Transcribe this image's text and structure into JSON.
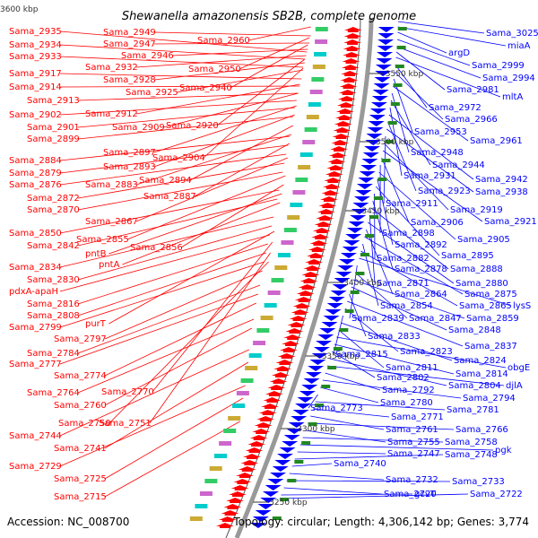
{
  "title": "Shewanella amazonensis SB2B, complete genome",
  "footer": {
    "accession": "Accession: NC_008700",
    "summary": "Topology: circular; Length: 4,306,142 bp; Genes: 3,774"
  },
  "colors": {
    "forward": "#ff0000",
    "reverse": "#0000ff",
    "backbone": "#999999"
  },
  "ticks": [
    {
      "label": "3600 kbp",
      "y": 10
    },
    {
      "label": "3550 kbp",
      "y": 82
    },
    {
      "label": "3500 kbp",
      "y": 158
    },
    {
      "label": "3450 kbp",
      "y": 235
    },
    {
      "label": "3400 kbp",
      "y": 315
    },
    {
      "label": "3350 kbp",
      "y": 397
    },
    {
      "label": "3300 kbp",
      "y": 478
    },
    {
      "label": "3250 kbp",
      "y": 560
    }
  ],
  "left_labels": [
    [
      "Sama_2935",
      10,
      38,
      325,
      58
    ],
    [
      "Sama_2934",
      10,
      53,
      322,
      66
    ],
    [
      "Sama_2933",
      10,
      66,
      320,
      75
    ],
    [
      "Sama_2917",
      10,
      85,
      318,
      88
    ],
    [
      "Sama_2914",
      10,
      100,
      316,
      96
    ],
    [
      "Sama_2913",
      30,
      115,
      314,
      104
    ],
    [
      "Sama_2902",
      10,
      131,
      312,
      112
    ],
    [
      "Sama_2901",
      30,
      145,
      310,
      120
    ],
    [
      "Sama_2899",
      30,
      158,
      308,
      130
    ],
    [
      "Sama_2884",
      10,
      182,
      304,
      152
    ],
    [
      "Sama_2879",
      10,
      196,
      302,
      162
    ],
    [
      "Sama_2876",
      10,
      209,
      300,
      172
    ],
    [
      "Sama_2872",
      30,
      224,
      298,
      182
    ],
    [
      "Sama_2870",
      30,
      237,
      296,
      192
    ],
    [
      "Sama_2850",
      10,
      263,
      292,
      212
    ],
    [
      "Sama_2842",
      30,
      277,
      290,
      222
    ],
    [
      "Sama_2834",
      10,
      301,
      286,
      242
    ],
    [
      "Sama_2830",
      30,
      315,
      284,
      252
    ],
    [
      "pdxA-apaH",
      10,
      328,
      282,
      262
    ],
    [
      "Sama_2816",
      30,
      342,
      280,
      272
    ],
    [
      "Sama_2808",
      30,
      355,
      278,
      282
    ],
    [
      "Sama_2799",
      10,
      368,
      276,
      292
    ],
    [
      "Sama_2797",
      60,
      381,
      274,
      302
    ],
    [
      "Sama_2784",
      30,
      397,
      272,
      318
    ],
    [
      "Sama_2777",
      10,
      409,
      270,
      328
    ],
    [
      "Sama_2774",
      60,
      422,
      268,
      338
    ],
    [
      "Sama_2764",
      30,
      441,
      266,
      356
    ],
    [
      "Sama_2760",
      60,
      455,
      264,
      366
    ],
    [
      "Sama_2744",
      10,
      489,
      262,
      390
    ],
    [
      "Sama_2741",
      60,
      503,
      262,
      404
    ],
    [
      "Sama_2729",
      10,
      523,
      260,
      430
    ],
    [
      "Sama_2725",
      60,
      537,
      258,
      444
    ],
    [
      "Sama_2715",
      60,
      557,
      256,
      470
    ],
    [
      "Sama_2949",
      115,
      39,
      330,
      40
    ],
    [
      "Sama_2947",
      115,
      52,
      328,
      48
    ],
    [
      "Sama_2946",
      135,
      65,
      326,
      55
    ],
    [
      "Sama_2932",
      95,
      78,
      324,
      62
    ],
    [
      "Sama_2928",
      115,
      92,
      322,
      70
    ],
    [
      "Sama_2925",
      140,
      106,
      320,
      78
    ],
    [
      "Sama_2912",
      95,
      130,
      316,
      94
    ],
    [
      "Sama_2909",
      125,
      145,
      314,
      104
    ],
    [
      "Sama_2897",
      115,
      173,
      312,
      118
    ],
    [
      "Sama_2893",
      115,
      189,
      310,
      128
    ],
    [
      "Sama_2894",
      155,
      204,
      308,
      140
    ],
    [
      "Sama_2883",
      95,
      209,
      306,
      150
    ],
    [
      "Sama_2887",
      160,
      222,
      304,
      160
    ],
    [
      "Sama_2867",
      95,
      250,
      302,
      176
    ],
    [
      "Sama_2855",
      85,
      270,
      300,
      196
    ],
    [
      "Sama_2856",
      145,
      279,
      298,
      206
    ],
    [
      "pntB",
      95,
      286,
      296,
      216
    ],
    [
      "pntA",
      110,
      298,
      294,
      226
    ],
    [
      "purT",
      95,
      364,
      288,
      258
    ],
    [
      "Sama_2770",
      113,
      440,
      286,
      270
    ],
    [
      "Sama_2751",
      110,
      475,
      284,
      282
    ],
    [
      "Sama_2750",
      65,
      475,
      282,
      292
    ],
    [
      "Sama_2960",
      220,
      48,
      330,
      30
    ],
    [
      "Sama_2950",
      210,
      80,
      328,
      42
    ],
    [
      "Sama_2940",
      200,
      101,
      326,
      50
    ],
    [
      "Sama_2920",
      185,
      143,
      322,
      66
    ],
    [
      "Sama_2904",
      170,
      179,
      320,
      76
    ]
  ],
  "right_labels": [
    [
      "Sama_3025",
      542,
      40,
      380,
      24
    ],
    [
      "miaA",
      566,
      54,
      380,
      30
    ],
    [
      "argD",
      500,
      62,
      380,
      36
    ],
    [
      "Sama_2999",
      526,
      76,
      380,
      44
    ],
    [
      "Sama_2994",
      538,
      90,
      380,
      52
    ],
    [
      "Sama_2981",
      498,
      103,
      380,
      58
    ],
    [
      "mltA",
      560,
      111,
      380,
      64
    ],
    [
      "Sama_2972",
      478,
      123,
      380,
      72
    ],
    [
      "Sama_2966",
      496,
      136,
      380,
      80
    ],
    [
      "Sama_2953",
      462,
      150,
      380,
      88
    ],
    [
      "Sama_2961",
      524,
      160,
      380,
      96
    ],
    [
      "Sama_2948",
      458,
      173,
      380,
      104
    ],
    [
      "Sama_2944",
      482,
      187,
      380,
      112
    ],
    [
      "Sama_2931",
      450,
      199,
      380,
      120
    ],
    [
      "Sama_2942",
      530,
      203,
      380,
      128
    ],
    [
      "Sama_2923",
      466,
      216,
      380,
      136
    ],
    [
      "Sama_2938",
      530,
      217,
      380,
      144
    ],
    [
      "Sama_2911",
      430,
      230,
      380,
      152
    ],
    [
      "Sama_2919",
      502,
      237,
      380,
      160
    ],
    [
      "Sama_2921",
      540,
      250,
      380,
      168
    ],
    [
      "Sama_2906",
      458,
      251,
      380,
      176
    ],
    [
      "Sama_2898",
      426,
      263,
      380,
      184
    ],
    [
      "Sama_2905",
      510,
      270,
      380,
      192
    ],
    [
      "Sama_2892",
      440,
      276,
      380,
      200
    ],
    [
      "Sama_2895",
      492,
      288,
      380,
      208
    ],
    [
      "Sama_2882",
      420,
      291,
      380,
      216
    ],
    [
      "Sama_2878",
      440,
      303,
      380,
      224
    ],
    [
      "Sama_2888",
      502,
      303,
      380,
      232
    ],
    [
      "Sama_2871",
      420,
      319,
      380,
      240
    ],
    [
      "Sama_2880",
      508,
      319,
      380,
      248
    ],
    [
      "Sama_2864",
      440,
      331,
      380,
      256
    ],
    [
      "Sama_2875",
      518,
      331,
      380,
      264
    ],
    [
      "Sama_2854",
      424,
      344,
      380,
      272
    ],
    [
      "Sama_2865",
      512,
      344,
      380,
      280
    ],
    [
      "lysS",
      572,
      344,
      380,
      288
    ],
    [
      "Sama_2839",
      392,
      358,
      380,
      296
    ],
    [
      "Sama_2847",
      456,
      358,
      380,
      304
    ],
    [
      "Sama_2859",
      520,
      358,
      380,
      312
    ],
    [
      "Sama_2848",
      500,
      371,
      380,
      320
    ],
    [
      "Sama_2833",
      410,
      378,
      380,
      328
    ],
    [
      "Sama_2837",
      518,
      389,
      380,
      336
    ],
    [
      "Sama_2823",
      446,
      395,
      380,
      344
    ],
    [
      "Sama_2815",
      374,
      398,
      380,
      352
    ],
    [
      "Sama_2824",
      506,
      405,
      380,
      360
    ],
    [
      "Sama_2811",
      430,
      413,
      380,
      368
    ],
    [
      "obgE",
      566,
      413,
      380,
      376
    ],
    [
      "Sama_2814",
      508,
      420,
      380,
      384
    ],
    [
      "Sama_2802",
      420,
      424,
      380,
      392
    ],
    [
      "Sama_2804",
      500,
      433,
      380,
      400
    ],
    [
      "djlA",
      564,
      433,
      380,
      408
    ],
    [
      "Sama_2792",
      426,
      438,
      380,
      416
    ],
    [
      "Sama_2794",
      516,
      447,
      380,
      424
    ],
    [
      "Sama_2780",
      424,
      452,
      380,
      432
    ],
    [
      "Sama_2773",
      346,
      458,
      380,
      440
    ],
    [
      "Sama_2781",
      498,
      460,
      380,
      448
    ],
    [
      "Sama_2771",
      436,
      468,
      380,
      456
    ],
    [
      "Sama_2761",
      430,
      482,
      380,
      464
    ],
    [
      "Sama_2766",
      508,
      482,
      380,
      472
    ],
    [
      "Sama_2755",
      432,
      496,
      380,
      480
    ],
    [
      "Sama_2758",
      496,
      496,
      380,
      488
    ],
    [
      "pgk",
      552,
      505,
      380,
      496
    ],
    [
      "Sama_2747",
      432,
      509,
      380,
      504
    ],
    [
      "Sama_2748",
      496,
      510,
      380,
      512
    ],
    [
      "Sama_2740",
      372,
      520,
      380,
      520
    ],
    [
      "Sama_2732",
      430,
      538,
      380,
      528
    ],
    [
      "Sama_2733",
      504,
      540,
      380,
      536
    ],
    [
      "Sama_2720",
      428,
      554,
      380,
      544
    ],
    [
      "gcvT",
      462,
      554,
      380,
      552
    ],
    [
      "Sama_2722",
      524,
      554,
      380,
      556
    ]
  ]
}
